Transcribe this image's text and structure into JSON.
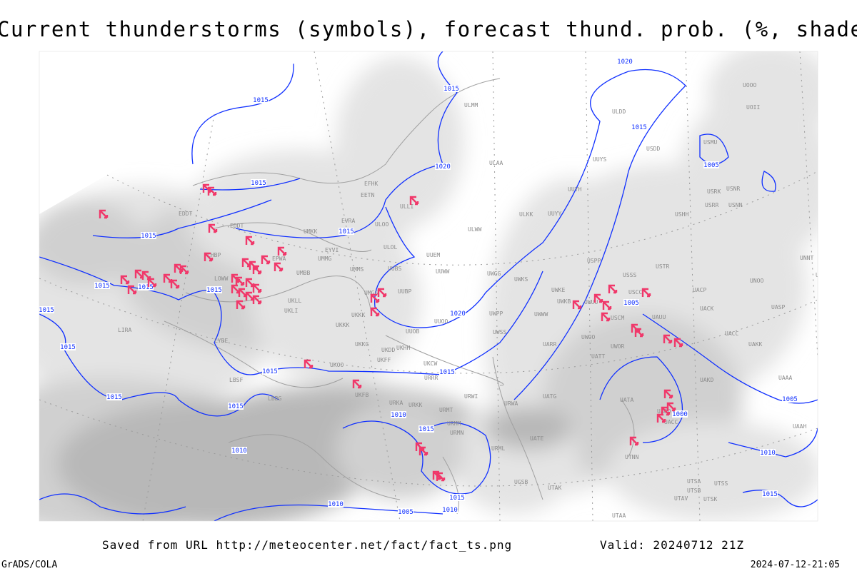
{
  "title": "Current thunderstorms (symbols), forecast thund. prob. (%, shaded)",
  "footer": {
    "saved_from": "Saved from URL http://meteocenter.net/fact/fact_ts.png",
    "valid": "Valid: 20240712 21Z",
    "software": "GrADS/COLA",
    "generated": "2024-07-12-21:05"
  },
  "map": {
    "storm_symbol_icon": "thunderstorm-symbol-icon",
    "colors": {
      "storm_symbol": "#f0386a",
      "isobar": "#1030ff",
      "station_label": "#8c8c8c",
      "shade_light": "#e4e4e4",
      "shade_mid": "#d0d0d0",
      "shade_dark": "#b8b8b8",
      "boundaries": "#a0a0a0"
    },
    "isobar_labels": [
      "1020",
      "1015",
      "1015",
      "1015",
      "1020",
      "1015",
      "1005",
      "1015",
      "1015",
      "1015",
      "1015",
      "1015",
      "1015",
      "1020",
      "1005",
      "1015",
      "1015",
      "1015",
      "1015",
      "1015",
      "1010",
      "1015",
      "1000",
      "1005",
      "1010",
      "1010",
      "1005",
      "1010",
      "1015",
      "1010",
      "1015"
    ],
    "stations": [
      "UOOO",
      "UOII",
      "ULMM",
      "ULDD",
      "USDD",
      "USMU",
      "UUYS",
      "ULAA",
      "UUYH",
      "USRK",
      "USNR",
      "USRR",
      "USNN",
      "ULKK",
      "UUYY",
      "USHH",
      "EFHK",
      "EETN",
      "ULLI",
      "ULOO",
      "EVRA",
      "UMKK",
      "ULWW",
      "EDDT",
      "ULOL",
      "UUEM",
      "UMMG",
      "UMMS",
      "UUBS",
      "UUWW",
      "UWGG",
      "UWKS",
      "USSS",
      "USTR",
      "UNNT",
      "UNBB",
      "USPP",
      "UMGG",
      "UUBP",
      "UWKE",
      "UWKB",
      "USCC",
      "UACP",
      "UNOO",
      "UASP",
      "UUOO",
      "UWPP",
      "UWWW",
      "UWUU",
      "USCM",
      "UAUU",
      "UACK",
      "UKKK",
      "UUOB",
      "UWSS",
      "UACC",
      "UAKK",
      "UKHH",
      "UKDD",
      "UKKG",
      "UARR",
      "UWOO",
      "UWOR",
      "UATT",
      "UKCW",
      "UKFF",
      "UKOO",
      "URRR",
      "URWI",
      "UKFB",
      "URKA",
      "URKK",
      "URMT",
      "UATG",
      "URMM",
      "URMN",
      "URWA",
      "UATE",
      "UATA",
      "UAOO",
      "UACC",
      "URML",
      "UTNN",
      "UAKD",
      "UAAA",
      "UGSB",
      "UTAK",
      "UTSA",
      "UTSB",
      "UTSS",
      "UTAV",
      "UTSK",
      "UTAA",
      "UAAH",
      "EPWA",
      "EDDT",
      "UMBB",
      "UKLL",
      "UKLI",
      "LYBE",
      "LBSF",
      "LBBG",
      "LIRA",
      "LHBP",
      "LOWW",
      "EYVI",
      "UKKK"
    ]
  }
}
